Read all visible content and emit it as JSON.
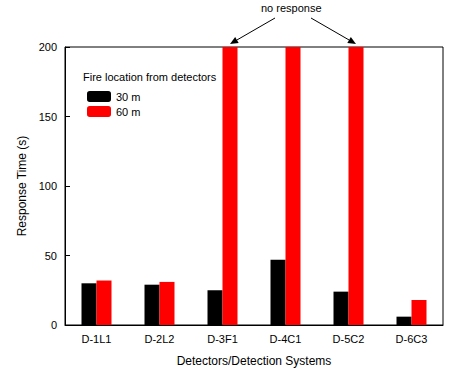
{
  "chart_data": {
    "type": "bar",
    "categories": [
      "D-1L1",
      "D-2L2",
      "D-3F1",
      "D-4C1",
      "D-5C2",
      "D-6C3"
    ],
    "series": [
      {
        "name": "30 m",
        "color": "#000000",
        "values": [
          30,
          29,
          25,
          47,
          24,
          6
        ]
      },
      {
        "name": "60 m",
        "color": "#ff0000",
        "values": [
          32,
          31,
          200,
          200,
          200,
          18
        ]
      }
    ],
    "x_label": "Detectors/Detection Systems",
    "y_label": "Response Time (s)",
    "legend_title": "Fire location from detectors",
    "legend": "upper left",
    "annotations": [
      {
        "text": "no response",
        "targets": [
          "D-3F1",
          "D-5C2"
        ],
        "series": "60 m"
      }
    ],
    "ylim": [
      0,
      200
    ],
    "yticks": [
      0,
      50,
      100,
      150,
      200
    ],
    "grid": false,
    "data_labels": false
  }
}
